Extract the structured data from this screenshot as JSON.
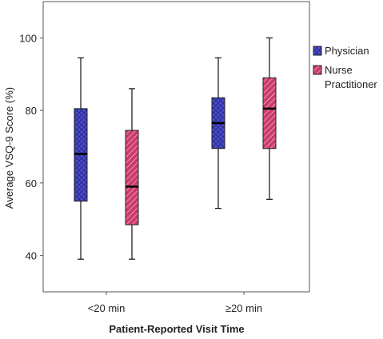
{
  "chart_data": {
    "type": "box",
    "ylabel": "Average VSQ-9 Score (%)",
    "xlabel": "Patient-Reported Visit Time",
    "ylim": [
      30,
      110
    ],
    "yticks": [
      40,
      60,
      80,
      100
    ],
    "categories": [
      "<20 min",
      "≥20 min"
    ],
    "series": [
      {
        "name": "Physician",
        "color": "#4b4bd0",
        "pattern": "crosshatch",
        "boxes": [
          {
            "min": 39,
            "q1": 55,
            "median": 68,
            "q3": 80.5,
            "max": 94.5
          },
          {
            "min": 53,
            "q1": 69.5,
            "median": 76.5,
            "q3": 83.5,
            "max": 94.5
          }
        ]
      },
      {
        "name": "Nurse Practitioner",
        "color": "#cc3a6e",
        "pattern": "diagonal",
        "boxes": [
          {
            "min": 39,
            "q1": 48.5,
            "median": 59,
            "q3": 74.5,
            "max": 86
          },
          {
            "min": 55.5,
            "q1": 69.5,
            "median": 80.5,
            "q3": 89,
            "max": 100
          }
        ]
      }
    ],
    "legend": {
      "position": "right",
      "entries": [
        "Physician",
        "Nurse Practitioner"
      ],
      "entry_lines": [
        [
          "Physician"
        ],
        [
          "Nurse",
          "Practitioner"
        ]
      ]
    },
    "grid": false
  }
}
